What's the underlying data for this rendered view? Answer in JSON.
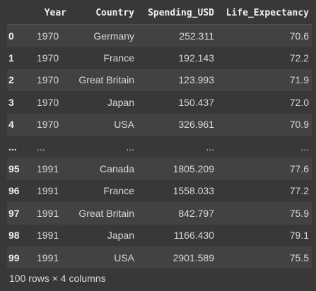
{
  "table": {
    "columns": [
      "",
      "Year",
      "Country",
      "Spending_USD",
      "Life_Expectancy"
    ],
    "rows": [
      [
        "0",
        "1970",
        "Germany",
        "252.311",
        "70.6"
      ],
      [
        "1",
        "1970",
        "France",
        "192.143",
        "72.2"
      ],
      [
        "2",
        "1970",
        "Great Britain",
        "123.993",
        "71.9"
      ],
      [
        "3",
        "1970",
        "Japan",
        "150.437",
        "72.0"
      ],
      [
        "4",
        "1970",
        "USA",
        "326.961",
        "70.9"
      ],
      [
        "...",
        "...",
        "...",
        "...",
        "..."
      ],
      [
        "95",
        "1991",
        "Canada",
        "1805.209",
        "77.6"
      ],
      [
        "96",
        "1991",
        "France",
        "1558.033",
        "77.2"
      ],
      [
        "97",
        "1991",
        "Great Britain",
        "842.797",
        "75.9"
      ],
      [
        "98",
        "1991",
        "Japan",
        "1166.430",
        "79.1"
      ],
      [
        "99",
        "1991",
        "USA",
        "2901.589",
        "75.5"
      ]
    ]
  },
  "footer": "100 rows × 4 columns"
}
